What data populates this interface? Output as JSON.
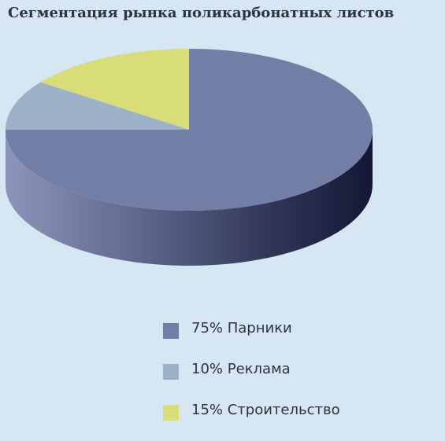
{
  "title": "Сегментация рынка поликарбонатных листов",
  "chart_data": {
    "type": "pie",
    "title": "Сегментация рынка поликарбонатных листов",
    "slices": [
      {
        "label": "75% Парники",
        "value": 75,
        "color": "#737ea6"
      },
      {
        "label": "10% Реклама",
        "value": 10,
        "color": "#9db2c9"
      },
      {
        "label": "15% Строительство",
        "value": 15,
        "color": "#d8dd7a"
      }
    ],
    "three_d": true,
    "legend": "bottom-right"
  }
}
